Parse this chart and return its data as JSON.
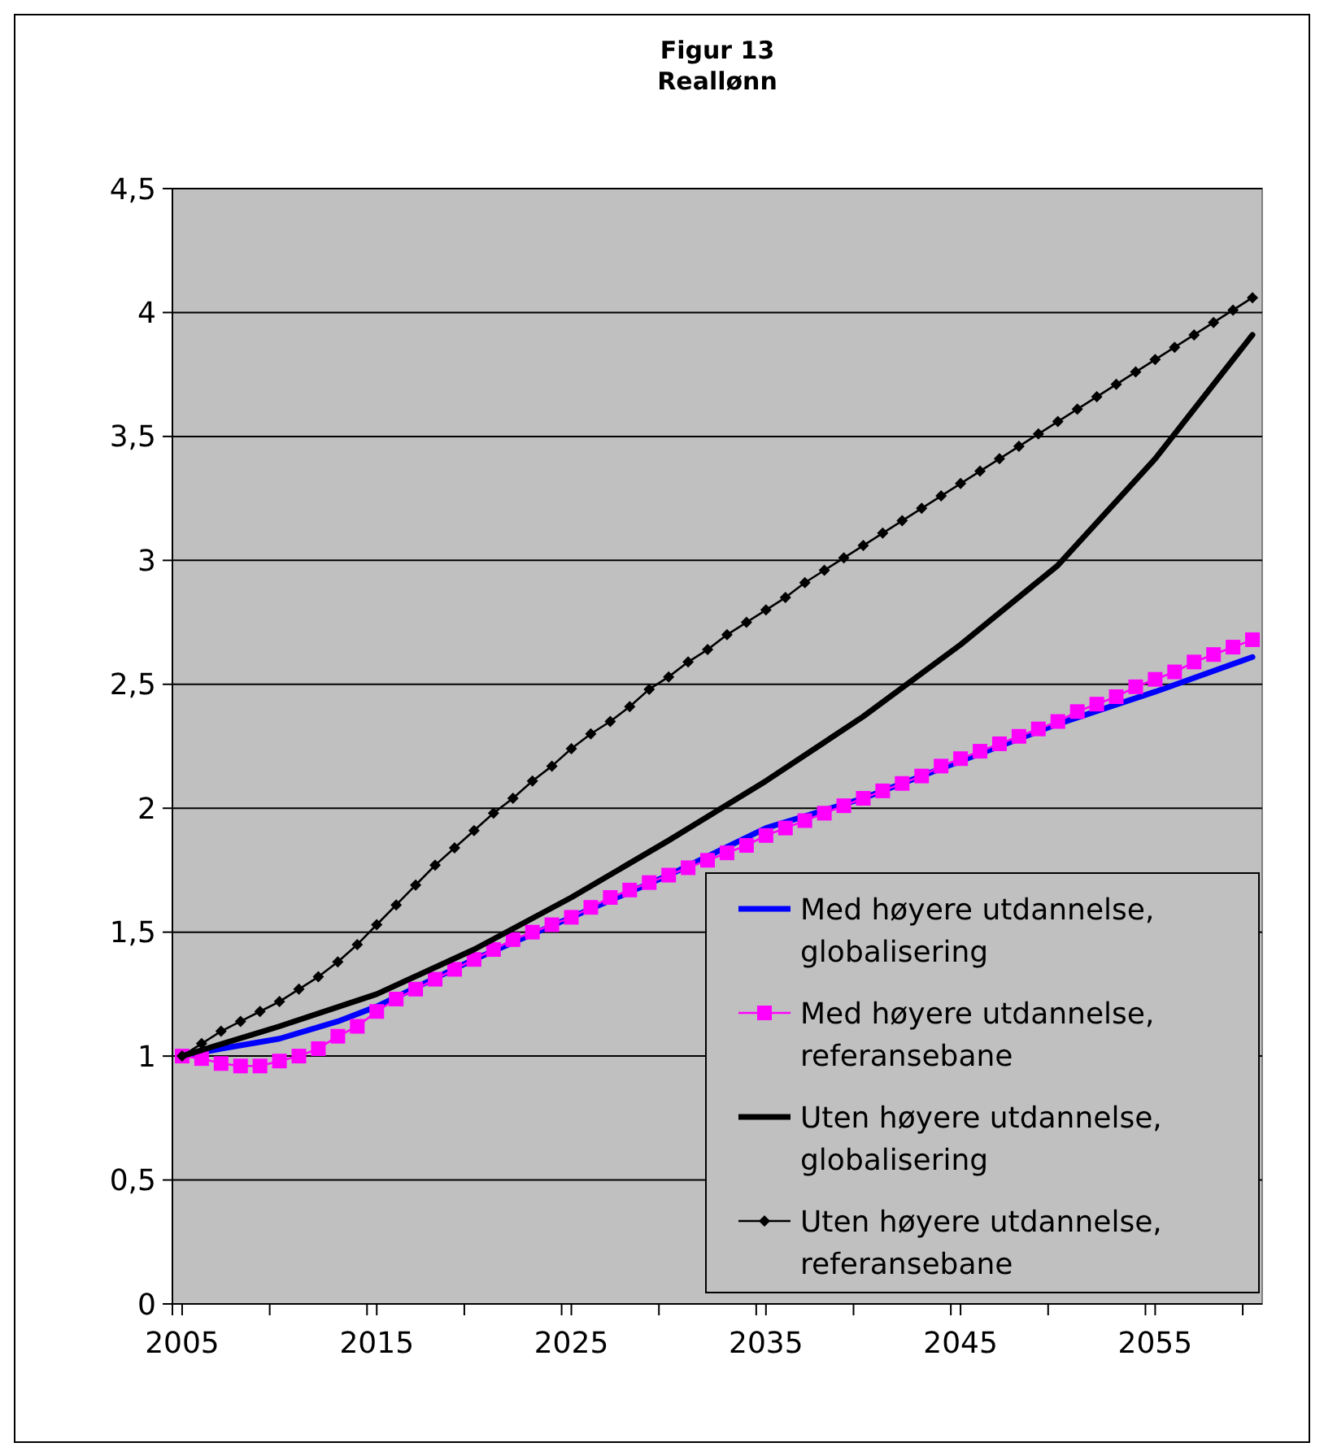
{
  "chart_data": {
    "type": "line",
    "title": "Figur 13",
    "subtitle": "Reallønn",
    "xlim": [
      2004.5,
      2060.5
    ],
    "xticks": [
      {
        "value": 2004.5,
        "label": null
      },
      2005,
      {
        "value": 2009.5,
        "label": null
      },
      2015,
      {
        "value": 2014.5,
        "label": null
      },
      {
        "value": 2019.5,
        "label": null
      },
      2025,
      {
        "value": 2024.5,
        "label": null
      },
      {
        "value": 2029.5,
        "label": null
      },
      2035,
      {
        "value": 2034.5,
        "label": null
      },
      {
        "value": 2039.5,
        "label": null
      },
      2045,
      {
        "value": 2044.5,
        "label": null
      },
      {
        "value": 2049.5,
        "label": null
      },
      2055,
      {
        "value": 2054.5,
        "label": null
      },
      {
        "value": 2059.5,
        "label": null
      }
    ],
    "ylim": [
      0,
      4.5
    ],
    "yticks": [
      0,
      {
        "value": 0.5,
        "label": "0,5"
      },
      1,
      {
        "value": 1.5,
        "label": "1,5"
      },
      2,
      {
        "value": 2.5,
        "label": "2,5"
      },
      3,
      {
        "value": 3.5,
        "label": "3,5"
      },
      4,
      {
        "value": 4.5,
        "label": "4,5"
      }
    ],
    "grid": "y",
    "legend": "bottom right",
    "series": [
      {
        "name": "Med høyere utdannelse, globalisering",
        "color": "#0000ff",
        "marker": "none",
        "x": [
          2005,
          2007,
          2010,
          2013,
          2015,
          2020,
          2025,
          2030,
          2035,
          2040,
          2045,
          2050,
          2055,
          2060
        ],
        "values": [
          1.0,
          1.03,
          1.07,
          1.14,
          1.2,
          1.39,
          1.56,
          1.73,
          1.92,
          2.04,
          2.19,
          2.34,
          2.47,
          2.61
        ]
      },
      {
        "name": "Med høyere utdannelse, referansebane",
        "color": "#ff00ff",
        "marker": "square",
        "x": [
          2005,
          2006,
          2007,
          2008,
          2009,
          2010,
          2011,
          2012,
          2013,
          2014,
          2015,
          2016,
          2017,
          2018,
          2019,
          2020,
          2021,
          2022,
          2023,
          2024,
          2025,
          2026,
          2027,
          2028,
          2029,
          2030,
          2031,
          2032,
          2033,
          2034,
          2035,
          2036,
          2037,
          2038,
          2039,
          2040,
          2041,
          2042,
          2043,
          2044,
          2045,
          2046,
          2047,
          2048,
          2049,
          2050,
          2051,
          2052,
          2053,
          2054,
          2055,
          2056,
          2057,
          2058,
          2059,
          2060
        ],
        "values": [
          1.0,
          0.99,
          0.97,
          0.96,
          0.96,
          0.98,
          1.0,
          1.03,
          1.08,
          1.12,
          1.18,
          1.23,
          1.27,
          1.31,
          1.35,
          1.39,
          1.43,
          1.47,
          1.5,
          1.53,
          1.56,
          1.6,
          1.64,
          1.67,
          1.7,
          1.73,
          1.76,
          1.79,
          1.82,
          1.85,
          1.89,
          1.92,
          1.95,
          1.98,
          2.01,
          2.04,
          2.07,
          2.1,
          2.13,
          2.17,
          2.2,
          2.23,
          2.26,
          2.29,
          2.32,
          2.35,
          2.39,
          2.42,
          2.45,
          2.49,
          2.52,
          2.55,
          2.59,
          2.62,
          2.65,
          2.68
        ]
      },
      {
        "name": "Uten høyere utdannelse, globalisering",
        "color": "#000000",
        "marker": "none",
        "x": [
          2005,
          2010,
          2015,
          2020,
          2025,
          2030,
          2035,
          2040,
          2045,
          2050,
          2055,
          2060
        ],
        "values": [
          1.0,
          1.12,
          1.25,
          1.43,
          1.64,
          1.87,
          2.11,
          2.37,
          2.66,
          2.98,
          3.41,
          3.91
        ]
      },
      {
        "name": "Uten høyere utdannelse, referansebane",
        "color": "#000000",
        "marker": "diamond",
        "x": [
          2005,
          2006,
          2007,
          2008,
          2009,
          2010,
          2011,
          2012,
          2013,
          2014,
          2015,
          2016,
          2017,
          2018,
          2019,
          2020,
          2021,
          2022,
          2023,
          2024,
          2025,
          2026,
          2027,
          2028,
          2029,
          2030,
          2031,
          2032,
          2033,
          2034,
          2035,
          2036,
          2037,
          2038,
          2039,
          2040,
          2041,
          2042,
          2043,
          2044,
          2045,
          2046,
          2047,
          2048,
          2049,
          2050,
          2051,
          2052,
          2053,
          2054,
          2055,
          2056,
          2057,
          2058,
          2059,
          2060
        ],
        "values": [
          1.0,
          1.05,
          1.1,
          1.14,
          1.18,
          1.22,
          1.27,
          1.32,
          1.38,
          1.45,
          1.53,
          1.61,
          1.69,
          1.77,
          1.84,
          1.91,
          1.98,
          2.04,
          2.11,
          2.17,
          2.24,
          2.3,
          2.35,
          2.41,
          2.48,
          2.53,
          2.59,
          2.64,
          2.7,
          2.75,
          2.8,
          2.85,
          2.91,
          2.96,
          3.01,
          3.06,
          3.11,
          3.16,
          3.21,
          3.26,
          3.31,
          3.36,
          3.41,
          3.46,
          3.51,
          3.56,
          3.61,
          3.66,
          3.71,
          3.76,
          3.81,
          3.86,
          3.91,
          3.96,
          4.01,
          4.06
        ]
      }
    ]
  }
}
